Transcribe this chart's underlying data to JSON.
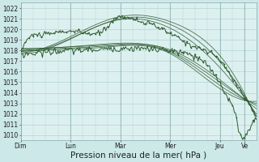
{
  "bg_color": "#cce8e8",
  "plot_bg": "#ddf0f0",
  "grid_color": "#b0d4d4",
  "line_color": "#2d5a2d",
  "ylim": [
    1009.5,
    1022.5
  ],
  "yticks": [
    1010,
    1011,
    1012,
    1013,
    1014,
    1015,
    1016,
    1017,
    1018,
    1019,
    1020,
    1021,
    1022
  ],
  "xlabel": "Pression niveau de la mer( hPa )",
  "day_labels": [
    "Dim",
    "Lun",
    "Mar",
    "Mer",
    "Jeu",
    "Ve"
  ],
  "day_positions": [
    0,
    48,
    96,
    144,
    192,
    216
  ],
  "total_points": 228,
  "tick_fontsize": 5.5,
  "label_fontsize": 7.5
}
